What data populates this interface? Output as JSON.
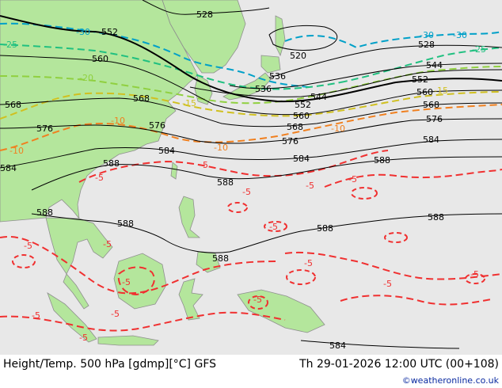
{
  "footer": {
    "title": "Height/Temp. 500 hPa [gdmp][°C] GFS",
    "datetime": "Th 29-01-2026 12:00 UTC (00+108)",
    "credit": "©weatheronline.co.uk"
  },
  "colors": {
    "sea": "#e8e8e8",
    "land": "#b4e69c",
    "coast": "#8f8f8f",
    "height_contour": "#000000",
    "t_minus30": "#00a0c8",
    "t_minus25": "#20c080",
    "t_minus20": "#90d040",
    "t_minus15": "#d0c020",
    "t_minus10": "#f08020",
    "t_minus5": "#f03030"
  },
  "height_labels": [
    "528",
    "552",
    "560",
    "568",
    "576",
    "584",
    "588",
    "520",
    "536",
    "544"
  ],
  "temperature_labels": [
    "-30",
    "-25",
    "-20",
    "-15",
    "-10",
    "-5"
  ]
}
